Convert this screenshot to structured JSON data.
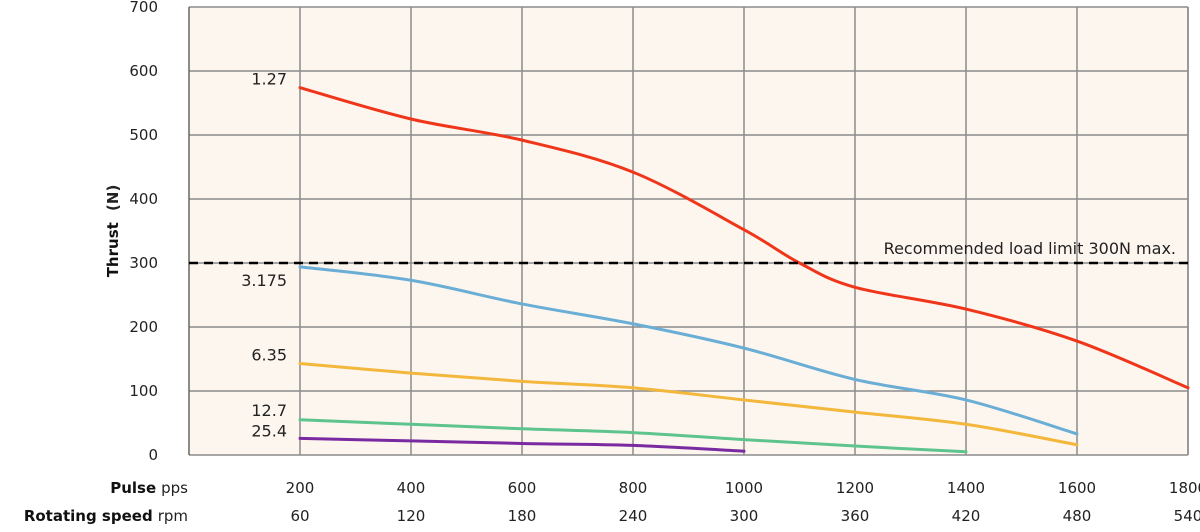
{
  "chart_data": {
    "type": "line",
    "ylabel": "Thrust",
    "ylabel_unit": "(N)",
    "ylim": [
      0,
      700
    ],
    "yticks": [
      0,
      100,
      200,
      300,
      400,
      500,
      600,
      700
    ],
    "x_axes": [
      {
        "title": "Pulse",
        "unit": "pps",
        "values": [
          "200",
          "400",
          "600",
          "800",
          "1000",
          "1200",
          "1400",
          "1600",
          "1800"
        ]
      },
      {
        "title": "Rotating speed",
        "unit": "rpm",
        "values": [
          "60",
          "120",
          "180",
          "240",
          "300",
          "360",
          "420",
          "480",
          "540"
        ]
      }
    ],
    "xlim": [
      0,
      1800
    ],
    "grid": true,
    "colors": {
      "plot_background": "#fdf6ef",
      "grid": "#8c8c8c",
      "limit_line": "#000000"
    },
    "series": [
      {
        "name": "1.27",
        "color": "#f0361a",
        "x": [
          200,
          400,
          600,
          800,
          1000,
          1100,
          1200,
          1400,
          1600,
          1800
        ],
        "y": [
          574,
          525,
          492,
          442,
          352,
          300,
          262,
          228,
          178,
          105
        ]
      },
      {
        "name": "3.175",
        "color": "#6aaed6",
        "x": [
          200,
          400,
          600,
          800,
          1000,
          1200,
          1400,
          1600
        ],
        "y": [
          294,
          273,
          236,
          205,
          167,
          118,
          86,
          33
        ]
      },
      {
        "name": "6.35",
        "color": "#f3b73c",
        "x": [
          200,
          400,
          600,
          800,
          1000,
          1200,
          1400,
          1600
        ],
        "y": [
          143,
          128,
          115,
          105,
          86,
          67,
          48,
          16
        ]
      },
      {
        "name": "12.7",
        "color": "#5ec48e",
        "x": [
          200,
          400,
          600,
          800,
          1000,
          1200,
          1400
        ],
        "y": [
          55,
          48,
          41,
          35,
          24,
          14,
          5
        ]
      },
      {
        "name": "25.4",
        "color": "#7a2aa0",
        "x": [
          200,
          400,
          600,
          800,
          1000
        ],
        "y": [
          26,
          22,
          18,
          15,
          6
        ]
      }
    ],
    "annotations": [
      {
        "text": "Recommended load limit 300N max.",
        "y": 300,
        "style": "dashed"
      }
    ]
  }
}
